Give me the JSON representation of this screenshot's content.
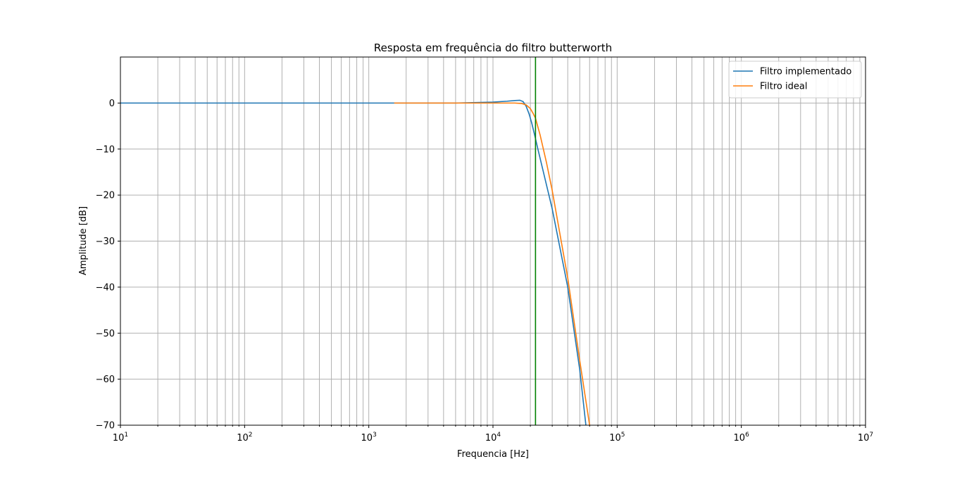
{
  "chart_data": {
    "type": "line",
    "title": "Resposta em frequência do filtro butterworth",
    "xlabel": "Frequencia [Hz]",
    "ylabel": "Amplitude [dB]",
    "xscale": "log",
    "xlim": [
      10,
      10000000
    ],
    "ylim": [
      -70,
      10
    ],
    "grid": "both (major and minor)",
    "legend_position": "upper right",
    "x_ticks": [
      {
        "base": "10",
        "exp": "1",
        "value": 10
      },
      {
        "base": "10",
        "exp": "2",
        "value": 100
      },
      {
        "base": "10",
        "exp": "3",
        "value": 1000
      },
      {
        "base": "10",
        "exp": "4",
        "value": 10000
      },
      {
        "base": "10",
        "exp": "5",
        "value": 100000
      },
      {
        "base": "10",
        "exp": "6",
        "value": 1000000
      },
      {
        "base": "10",
        "exp": "7",
        "value": 10000000
      }
    ],
    "y_ticks": [
      {
        "label": "0",
        "value": 0
      },
      {
        "label": "−10",
        "value": -10
      },
      {
        "label": "−20",
        "value": -20
      },
      {
        "label": "−30",
        "value": -30
      },
      {
        "label": "−40",
        "value": -40
      },
      {
        "label": "−50",
        "value": -50
      },
      {
        "label": "−60",
        "value": -60
      },
      {
        "label": "−70",
        "value": -70
      }
    ],
    "series": [
      {
        "name": "Filtro implementado",
        "color": "#1f77b4",
        "points": [
          [
            10,
            0
          ],
          [
            100,
            0
          ],
          [
            1000,
            0
          ],
          [
            5000,
            0
          ],
          [
            10000,
            0.2
          ],
          [
            13000,
            0.4
          ],
          [
            15000,
            0.55
          ],
          [
            16500,
            0.6
          ],
          [
            17500,
            0.3
          ],
          [
            18500,
            -0.7
          ],
          [
            19500,
            -2.3
          ],
          [
            20500,
            -4.3
          ],
          [
            21500,
            -6.6
          ],
          [
            23000,
            -10
          ],
          [
            26000,
            -16
          ],
          [
            30000,
            -23
          ],
          [
            40000,
            -40
          ],
          [
            50000,
            -58
          ],
          [
            56000,
            -70
          ]
        ]
      },
      {
        "name": "Filtro ideal",
        "color": "#ff7f0e",
        "points": [
          [
            1600,
            0
          ],
          [
            5000,
            0
          ],
          [
            10000,
            0
          ],
          [
            15000,
            0
          ],
          [
            17000,
            -0.1
          ],
          [
            18500,
            -0.4
          ],
          [
            20000,
            -1.2
          ],
          [
            21000,
            -2.2
          ],
          [
            22000,
            -3.3
          ],
          [
            24000,
            -7
          ],
          [
            27000,
            -13
          ],
          [
            30000,
            -19
          ],
          [
            40000,
            -38
          ],
          [
            50000,
            -56
          ],
          [
            60000,
            -70
          ]
        ]
      }
    ],
    "vertical_lines": [
      {
        "x": 22000,
        "color": "#008000"
      }
    ]
  }
}
